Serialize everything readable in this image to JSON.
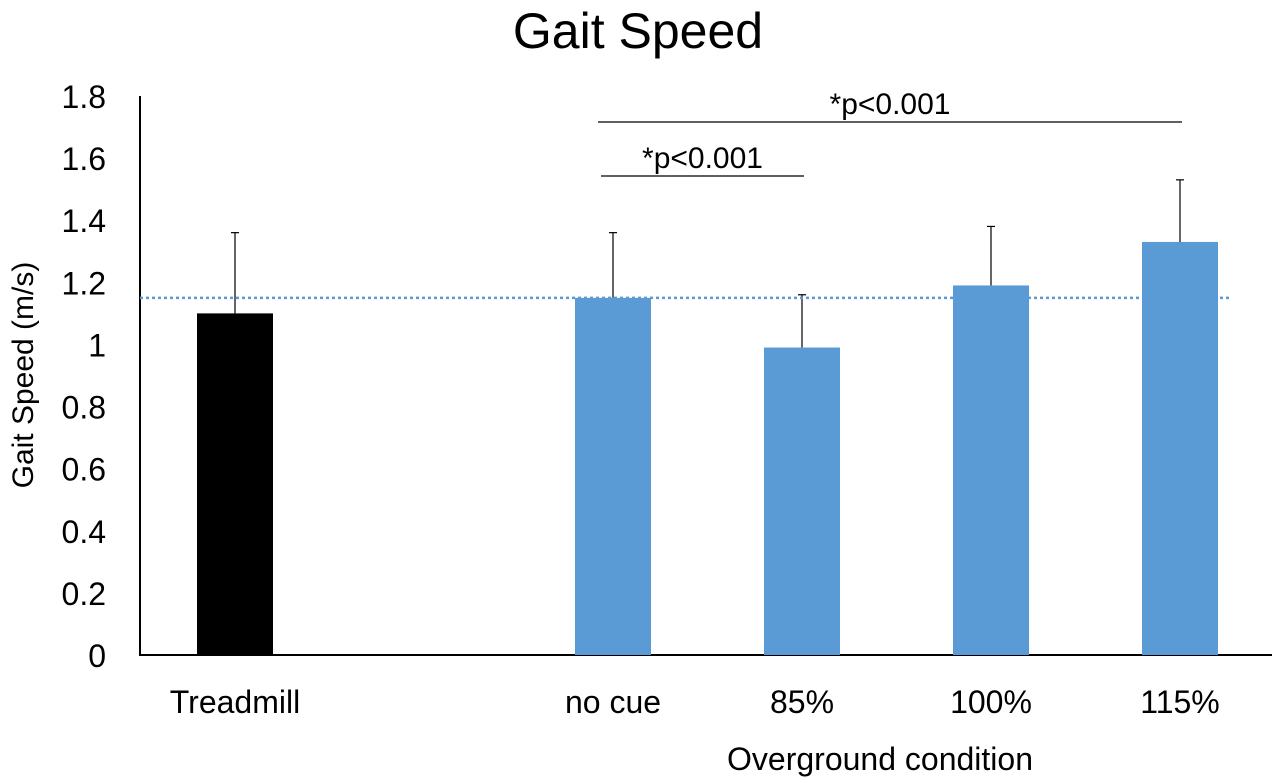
{
  "chart_data": {
    "type": "bar",
    "title": "Gait Speed",
    "ylabel": "Gait Speed (m/s)",
    "xlabel": "Overground condition",
    "ylim": [
      0,
      1.8
    ],
    "yticks": [
      "0",
      "0.2",
      "0.4",
      "0.6",
      "0.8",
      "1",
      "1.2",
      "1.4",
      "1.6",
      "1.8"
    ],
    "categories": [
      "Treadmill",
      "no cue",
      "85%",
      "100%",
      "115%"
    ],
    "values": [
      1.1,
      1.15,
      0.99,
      1.19,
      1.33
    ],
    "error_upper": [
      0.26,
      0.21,
      0.17,
      0.19,
      0.2
    ],
    "reference_line": 1.15,
    "grid": false,
    "annotations": [
      {
        "text": "*p<0.001",
        "from": "no cue",
        "to": "85%"
      },
      {
        "text": "*p<0.001",
        "from": "no cue",
        "to": "115%"
      }
    ],
    "colors": {
      "treadmill": "#000000",
      "overground": "#5b9bd5",
      "reference_line": "#5b9bd5",
      "axis": "#000000"
    }
  }
}
